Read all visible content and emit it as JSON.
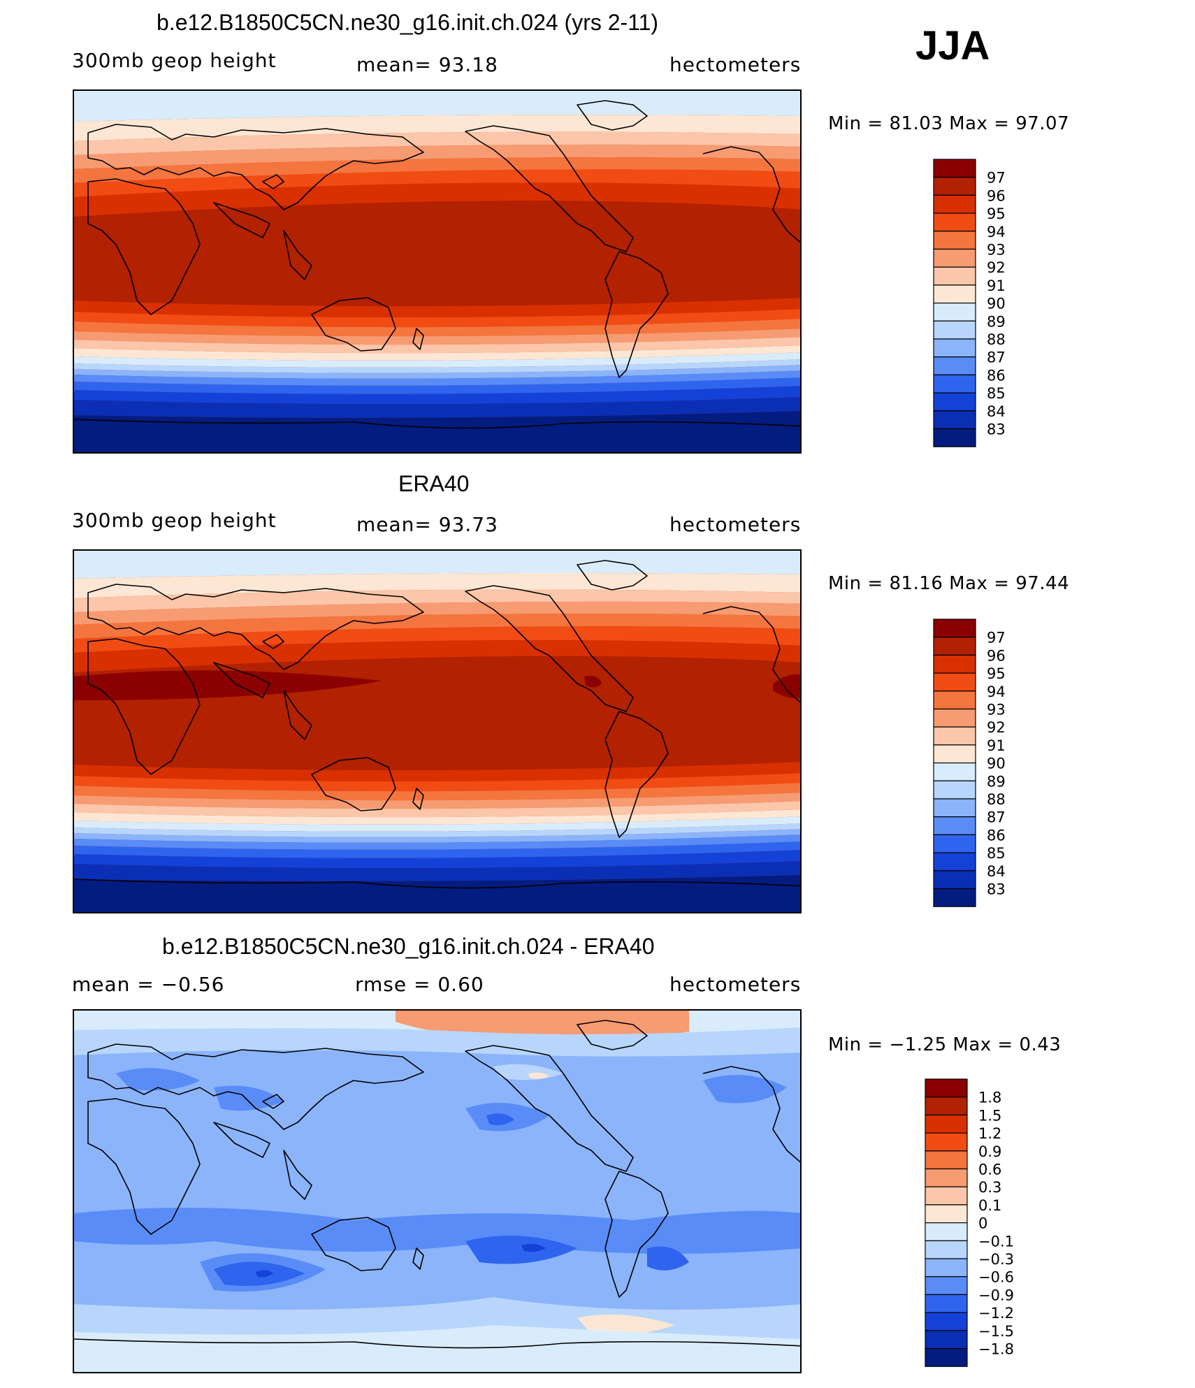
{
  "season": "JJA",
  "panels": [
    {
      "id": "model",
      "title": "b.e12.B1850C5CN.ne30_g16.init.ch.024 (yrs 2-11)",
      "left_label": "300mb  geop  height",
      "center_label": "mean=   93.18",
      "right_label": "hectometers",
      "minmax": "Min  =    81.03  Max  =    97.07",
      "levels": [
        "97",
        "96",
        "95",
        "94",
        "93",
        "92",
        "91",
        "90",
        "89",
        "88",
        "87",
        "86",
        "85",
        "84",
        "83"
      ],
      "colors": [
        "#8b0000",
        "#b22100",
        "#d93000",
        "#f04c14",
        "#f5753e",
        "#f79b72",
        "#fbc6a9",
        "#fde7d4",
        "#d9ecfc",
        "#b8d6fb",
        "#8bb4fb",
        "#5a8cf7",
        "#2f64ef",
        "#1442d8",
        "#0a2fb5",
        "#031c80"
      ]
    },
    {
      "id": "obs",
      "title": "ERA40",
      "left_label": "300mb  geop  height",
      "center_label": "mean=   93.73",
      "right_label": "hectometers",
      "minmax": "Min  =    81.16  Max  =    97.44",
      "levels": [
        "97",
        "96",
        "95",
        "94",
        "93",
        "92",
        "91",
        "90",
        "89",
        "88",
        "87",
        "86",
        "85",
        "84",
        "83"
      ],
      "colors": [
        "#8b0000",
        "#b22100",
        "#d93000",
        "#f04c14",
        "#f5753e",
        "#f79b72",
        "#fbc6a9",
        "#fde7d4",
        "#d9ecfc",
        "#b8d6fb",
        "#8bb4fb",
        "#5a8cf7",
        "#2f64ef",
        "#1442d8",
        "#0a2fb5",
        "#031c80"
      ]
    },
    {
      "id": "diff",
      "title": "b.e12.B1850C5CN.ne30_g16.init.ch.024 - ERA40",
      "left_label": "mean  =    −0.56",
      "center_label": "rmse  =     0.60",
      "right_label": "hectometers",
      "minmax": "Min  =   −1.25  Max  =     0.43",
      "levels": [
        "1.8",
        "1.5",
        "1.2",
        "0.9",
        "0.6",
        "0.3",
        "0.1",
        "0",
        "−0.1",
        "−0.3",
        "−0.6",
        "−0.9",
        "−1.2",
        "−1.5",
        "−1.8"
      ],
      "colors": [
        "#8b0000",
        "#b22100",
        "#d93000",
        "#f04c14",
        "#f5753e",
        "#f79b72",
        "#fbc6a9",
        "#fde7d4",
        "#d9ecfc",
        "#b8d6fb",
        "#8bb4fb",
        "#5a8cf7",
        "#2f64ef",
        "#1442d8",
        "#0a2fb5",
        "#031c80"
      ]
    }
  ]
}
